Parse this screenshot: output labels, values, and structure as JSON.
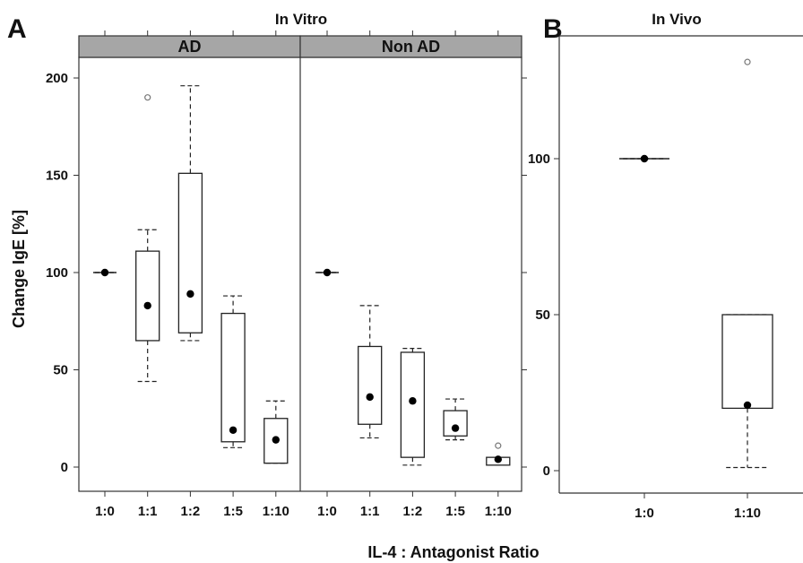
{
  "figure": {
    "panel_a_letter": "A",
    "panel_b_letter": "B",
    "xlabel": "IL-4 : Antagonist Ratio",
    "ylabel": "Change IgE [%]"
  },
  "colors": {
    "strip": "#a6a6a6",
    "box_stroke": "#222222",
    "outlier": "#777777",
    "median_point": "#000000"
  },
  "chart_data": [
    {
      "type": "box",
      "title": "In Vitro",
      "ylim": [
        -10,
        210
      ],
      "yticks": [
        0,
        50,
        100,
        150,
        200
      ],
      "facets": [
        {
          "name": "AD",
          "categories": [
            "1:0",
            "1:1",
            "1:2",
            "1:5",
            "1:10"
          ],
          "boxes": [
            {
              "q1": 100,
              "q3": 100,
              "whisker_low": 100,
              "whisker_high": 100,
              "median_point": 100,
              "outliers": []
            },
            {
              "q1": 65,
              "q3": 111,
              "whisker_low": 44,
              "whisker_high": 122,
              "median_point": 83,
              "outliers": [
                190
              ]
            },
            {
              "q1": 69,
              "q3": 151,
              "whisker_low": 65,
              "whisker_high": 196,
              "median_point": 89,
              "outliers": []
            },
            {
              "q1": 13,
              "q3": 79,
              "whisker_low": 10,
              "whisker_high": 88,
              "median_point": 19,
              "outliers": []
            },
            {
              "q1": 2,
              "q3": 25,
              "whisker_low": 2,
              "whisker_high": 34,
              "median_point": 14,
              "outliers": []
            }
          ]
        },
        {
          "name": "Non AD",
          "categories": [
            "1:0",
            "1:1",
            "1:2",
            "1:5",
            "1:10"
          ],
          "boxes": [
            {
              "q1": 100,
              "q3": 100,
              "whisker_low": 100,
              "whisker_high": 100,
              "median_point": 100,
              "outliers": []
            },
            {
              "q1": 22,
              "q3": 62,
              "whisker_low": 15,
              "whisker_high": 83,
              "median_point": 36,
              "outliers": []
            },
            {
              "q1": 5,
              "q3": 59,
              "whisker_low": 1,
              "whisker_high": 61,
              "median_point": 34,
              "outliers": []
            },
            {
              "q1": 16,
              "q3": 29,
              "whisker_low": 14,
              "whisker_high": 35,
              "median_point": 20,
              "outliers": []
            },
            {
              "q1": 1,
              "q3": 5,
              "whisker_low": 1,
              "whisker_high": 5,
              "median_point": 4,
              "outliers": [
                11
              ]
            }
          ]
        }
      ]
    },
    {
      "type": "box",
      "title": "In Vivo",
      "ylim": [
        -7,
        138
      ],
      "yticks": [
        0,
        50,
        100
      ],
      "categories": [
        "1:0",
        "1:10"
      ],
      "boxes": [
        {
          "q1": 100,
          "q3": 100,
          "whisker_low": 100,
          "whisker_high": 100,
          "median_point": 100,
          "outliers": []
        },
        {
          "q1": 20,
          "q3": 50,
          "whisker_low": 1,
          "whisker_high": 50,
          "median_point": 21,
          "outliers": [
            131
          ]
        }
      ]
    }
  ]
}
